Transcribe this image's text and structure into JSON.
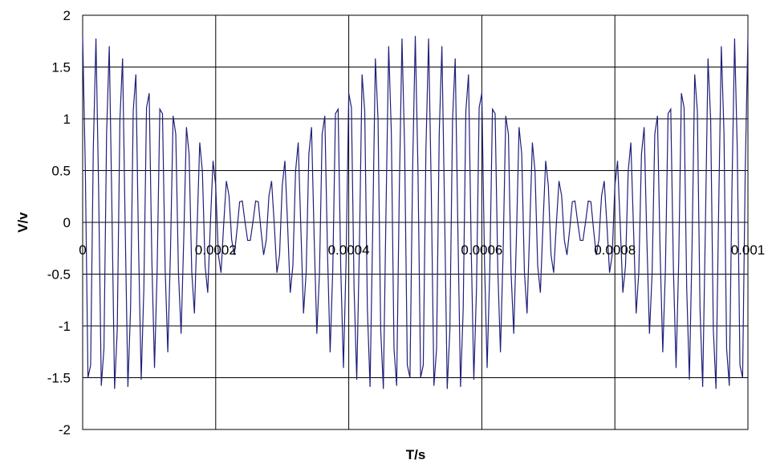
{
  "chart_data": {
    "type": "line",
    "title": "",
    "xlabel": "T/s",
    "ylabel": "V/v",
    "xlim": [
      0,
      0.001
    ],
    "ylim": [
      -2,
      2
    ],
    "x_ticks": [
      0,
      0.0002,
      0.0004,
      0.0006,
      0.0008,
      0.001
    ],
    "x_tick_labels": [
      "0",
      "0.0002",
      "0.0004",
      "0.0006",
      "0.0008",
      "0.001"
    ],
    "y_ticks": [
      -2,
      -1.5,
      -1,
      -0.5,
      0,
      0.5,
      1,
      1.5,
      2
    ],
    "y_tick_labels": [
      "-2",
      "-1.5",
      "-1",
      "-0.5",
      "0",
      "0.5",
      "1",
      "1.5",
      "2"
    ],
    "grid": true,
    "legend": "none",
    "series": [
      {
        "color": "#1f1f7a",
        "signal": "beat of two sinusoids",
        "amplitudes": [
          1,
          0.8
        ],
        "frequencies_hz": [
          50000,
          52000
        ],
        "t_start": 0,
        "t_end": 0.001,
        "sample_step": 4e-06
      }
    ]
  }
}
